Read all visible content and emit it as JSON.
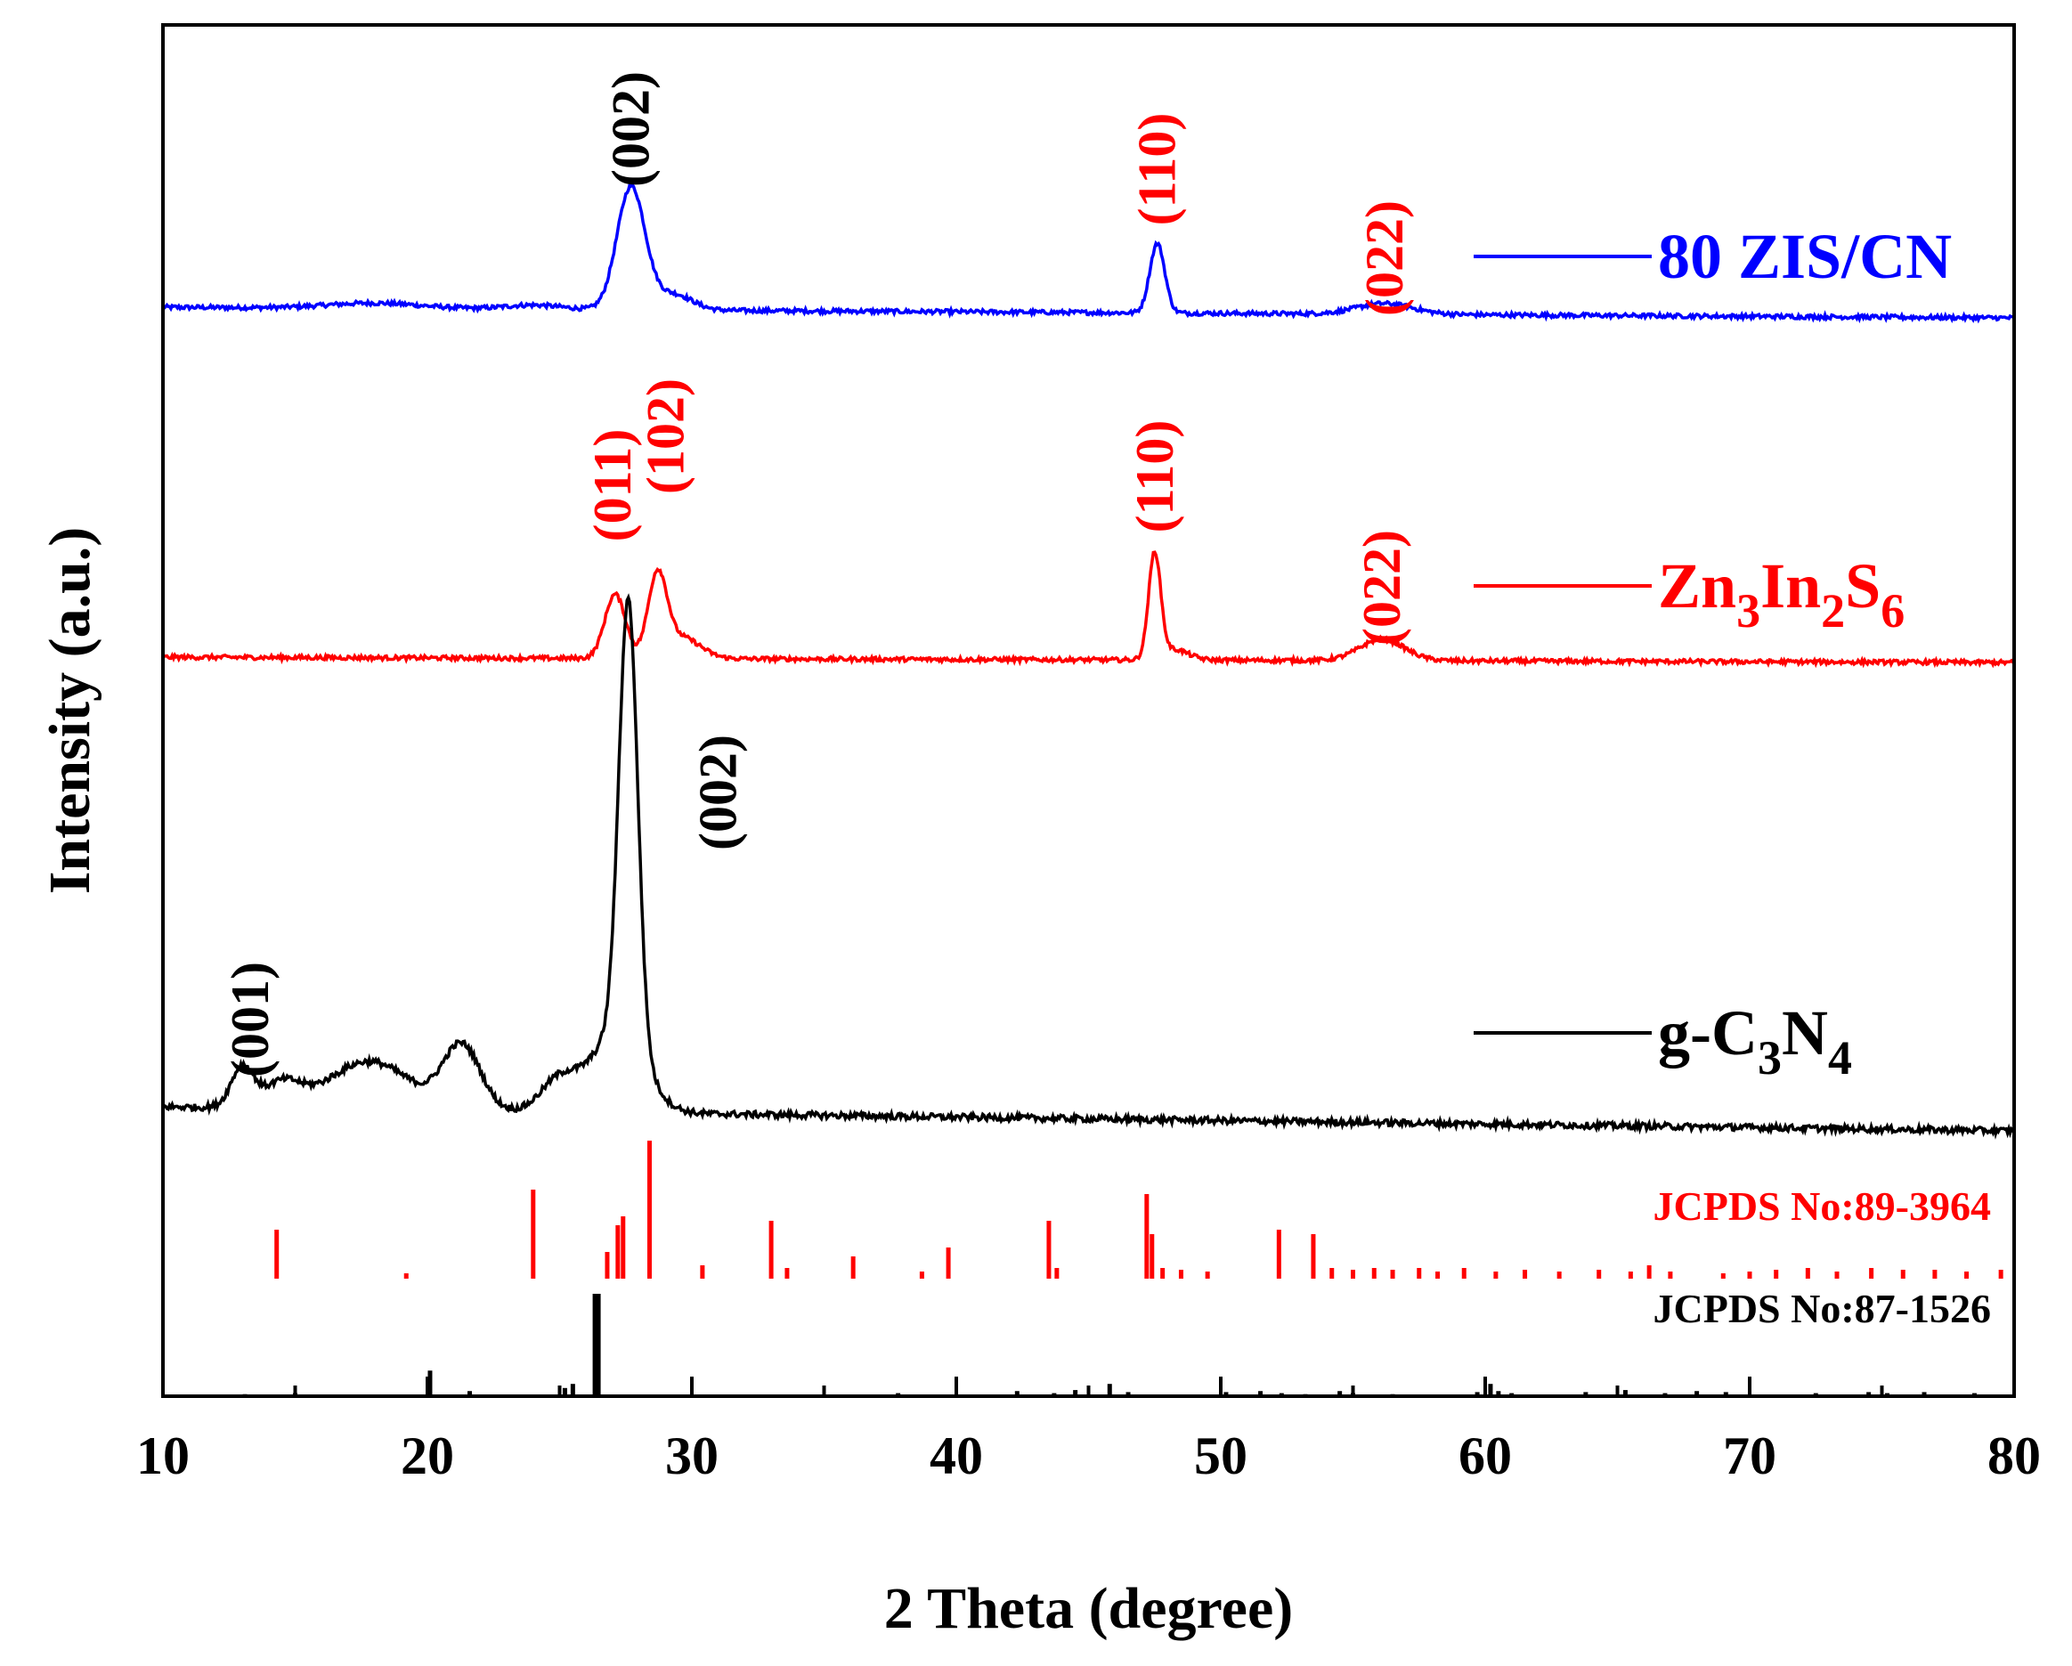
{
  "chart_data": {
    "type": "line",
    "xlabel": "2 Theta (degree)",
    "ylabel": "Intensity (a.u.)",
    "xlim": [
      10,
      80
    ],
    "xticks": [
      "10",
      "20",
      "30",
      "40",
      "50",
      "60",
      "70",
      "80"
    ],
    "series": [
      {
        "name": "80 ZIS/CN",
        "color": "#0000ff",
        "baseline_start": 1.0,
        "baseline_end": 0.8,
        "noise": 0.04,
        "peaks": [
          {
            "center": 27.7,
            "height": 2.3,
            "width": 0.75
          },
          {
            "center": 29.3,
            "height": 0.3,
            "width": 1.0
          },
          {
            "center": 47.6,
            "height": 1.3,
            "width": 0.4
          },
          {
            "center": 56.2,
            "height": 0.2,
            "width": 1.5
          },
          {
            "center": 18.0,
            "height": 0.1,
            "width": 2.5
          },
          {
            "center": 24.0,
            "height": 0.08,
            "width": 1.5
          }
        ],
        "legend_parts": [
          {
            "text": "80 ZIS/CN",
            "sub": false
          }
        ],
        "annotations": [
          {
            "text": "(002)",
            "x": 27.7,
            "color": "#000000"
          },
          {
            "text": "(110)",
            "x": 47.6,
            "color": "#ff0000"
          },
          {
            "text": "(022)",
            "x": 56.2,
            "color": "#ff0000"
          }
        ]
      },
      {
        "name": "Zn3In2S6",
        "color": "#ff0000",
        "baseline_start": 0.7,
        "baseline_end": 0.6,
        "noise": 0.04,
        "peaks": [
          {
            "center": 27.1,
            "height": 1.2,
            "width": 0.55
          },
          {
            "center": 28.7,
            "height": 1.5,
            "width": 0.5
          },
          {
            "center": 29.6,
            "height": 0.4,
            "width": 1.0
          },
          {
            "center": 47.5,
            "height": 1.95,
            "width": 0.32
          },
          {
            "center": 48.2,
            "height": 0.2,
            "width": 0.8
          },
          {
            "center": 56.1,
            "height": 0.4,
            "width": 1.2
          }
        ],
        "legend_parts": [
          {
            "text": "Zn",
            "sub": false
          },
          {
            "text": "3",
            "sub": true
          },
          {
            "text": "In",
            "sub": false
          },
          {
            "text": "2",
            "sub": true
          },
          {
            "text": "S",
            "sub": false
          },
          {
            "text": "6",
            "sub": true
          }
        ],
        "annotations": [
          {
            "text": "(011)",
            "x": 27.0,
            "color": "#ff0000"
          },
          {
            "text": "(102)",
            "x": 29.0,
            "color": "#ff0000"
          },
          {
            "text": "(110)",
            "x": 47.5,
            "color": "#ff0000"
          },
          {
            "text": "(022)",
            "x": 56.1,
            "color": "#ff0000"
          }
        ]
      },
      {
        "name": "g-C3N4",
        "color": "#000000",
        "baseline_start": 0.3,
        "baseline_end": 0.0,
        "noise": 0.04,
        "peaks": [
          {
            "center": 27.6,
            "height": 5.5,
            "width": 0.5
          },
          {
            "center": 27.2,
            "height": 1.0,
            "width": 1.4
          },
          {
            "center": 13.0,
            "height": 0.5,
            "width": 0.6
          },
          {
            "center": 17.8,
            "height": 0.6,
            "width": 2.2
          },
          {
            "center": 21.3,
            "height": 0.8,
            "width": 1.0
          },
          {
            "center": 25.0,
            "height": 0.4,
            "width": 1.0
          },
          {
            "center": 14.5,
            "height": 0.3,
            "width": 1.0
          }
        ],
        "legend_parts": [
          {
            "text": "g-C",
            "sub": false
          },
          {
            "text": "3",
            "sub": true
          },
          {
            "text": "N",
            "sub": false
          },
          {
            "text": "4",
            "sub": true
          }
        ],
        "annotations": [
          {
            "text": "(001)",
            "x": 13.3,
            "color": "#000000"
          },
          {
            "text": "(002)",
            "x": 31.0,
            "color": "#000000"
          }
        ]
      }
    ],
    "reference_patterns": [
      {
        "label": "JCPDS No:89-3964",
        "color": "#ff0000",
        "sticks": [
          {
            "x": 14.3,
            "h": 0.55
          },
          {
            "x": 19.2,
            "h": 0.06
          },
          {
            "x": 24.0,
            "h": 1.0
          },
          {
            "x": 26.8,
            "h": 0.3
          },
          {
            "x": 27.2,
            "h": 0.6
          },
          {
            "x": 27.4,
            "h": 0.7
          },
          {
            "x": 28.4,
            "h": 1.55
          },
          {
            "x": 30.4,
            "h": 0.15
          },
          {
            "x": 33.0,
            "h": 0.65
          },
          {
            "x": 33.6,
            "h": 0.12
          },
          {
            "x": 36.1,
            "h": 0.25
          },
          {
            "x": 38.7,
            "h": 0.08
          },
          {
            "x": 39.7,
            "h": 0.35
          },
          {
            "x": 43.5,
            "h": 0.65
          },
          {
            "x": 43.8,
            "h": 0.12
          },
          {
            "x": 47.2,
            "h": 0.95
          },
          {
            "x": 47.4,
            "h": 0.5
          },
          {
            "x": 47.8,
            "h": 0.12
          },
          {
            "x": 48.5,
            "h": 0.1
          },
          {
            "x": 49.5,
            "h": 0.08
          },
          {
            "x": 52.2,
            "h": 0.55
          },
          {
            "x": 53.5,
            "h": 0.5
          },
          {
            "x": 54.2,
            "h": 0.12
          },
          {
            "x": 55.0,
            "h": 0.1
          },
          {
            "x": 55.8,
            "h": 0.12
          },
          {
            "x": 56.5,
            "h": 0.1
          },
          {
            "x": 57.5,
            "h": 0.12
          },
          {
            "x": 58.2,
            "h": 0.08
          },
          {
            "x": 59.2,
            "h": 0.12
          },
          {
            "x": 60.4,
            "h": 0.08
          },
          {
            "x": 61.5,
            "h": 0.1
          },
          {
            "x": 62.8,
            "h": 0.08
          },
          {
            "x": 64.3,
            "h": 0.1
          },
          {
            "x": 65.5,
            "h": 0.08
          },
          {
            "x": 66.2,
            "h": 0.15
          },
          {
            "x": 67.0,
            "h": 0.08
          },
          {
            "x": 69.0,
            "h": 0.06
          },
          {
            "x": 70.0,
            "h": 0.08
          },
          {
            "x": 71.0,
            "h": 0.1
          },
          {
            "x": 72.2,
            "h": 0.12
          },
          {
            "x": 73.3,
            "h": 0.08
          },
          {
            "x": 74.6,
            "h": 0.12
          },
          {
            "x": 75.8,
            "h": 0.1
          },
          {
            "x": 77.0,
            "h": 0.1
          },
          {
            "x": 78.2,
            "h": 0.08
          },
          {
            "x": 79.5,
            "h": 0.1
          }
        ]
      },
      {
        "label": "JCPDS No:87-1526",
        "color": "#000000",
        "sticks": [
          {
            "x": 13.1,
            "h": 0.02
          },
          {
            "x": 15.0,
            "h": 0.03
          },
          {
            "x": 20.1,
            "h": 0.25
          },
          {
            "x": 21.6,
            "h": 0.05
          },
          {
            "x": 25.2,
            "h": 0.08
          },
          {
            "x": 25.5,
            "h": 0.12
          },
          {
            "x": 26.4,
            "h": 1.0
          },
          {
            "x": 37.8,
            "h": 0.03
          },
          {
            "x": 42.3,
            "h": 0.05
          },
          {
            "x": 43.7,
            "h": 0.03
          },
          {
            "x": 44.5,
            "h": 0.06
          },
          {
            "x": 45.8,
            "h": 0.12
          },
          {
            "x": 46.5,
            "h": 0.04
          },
          {
            "x": 50.2,
            "h": 0.04
          },
          {
            "x": 51.5,
            "h": 0.05
          },
          {
            "x": 52.3,
            "h": 0.03
          },
          {
            "x": 53.2,
            "h": 0.02
          },
          {
            "x": 54.5,
            "h": 0.05
          },
          {
            "x": 55.0,
            "h": 0.03
          },
          {
            "x": 56.5,
            "h": 0.02
          },
          {
            "x": 59.7,
            "h": 0.04
          },
          {
            "x": 60.2,
            "h": 0.12
          },
          {
            "x": 60.5,
            "h": 0.05
          },
          {
            "x": 61.0,
            "h": 0.03
          },
          {
            "x": 63.8,
            "h": 0.04
          },
          {
            "x": 65.3,
            "h": 0.06
          },
          {
            "x": 66.8,
            "h": 0.03
          },
          {
            "x": 68.0,
            "h": 0.05
          },
          {
            "x": 69.1,
            "h": 0.04
          },
          {
            "x": 72.5,
            "h": 0.03
          },
          {
            "x": 74.5,
            "h": 0.04
          },
          {
            "x": 75.2,
            "h": 0.03
          },
          {
            "x": 76.6,
            "h": 0.04
          },
          {
            "x": 78.5,
            "h": 0.03
          }
        ]
      }
    ]
  }
}
